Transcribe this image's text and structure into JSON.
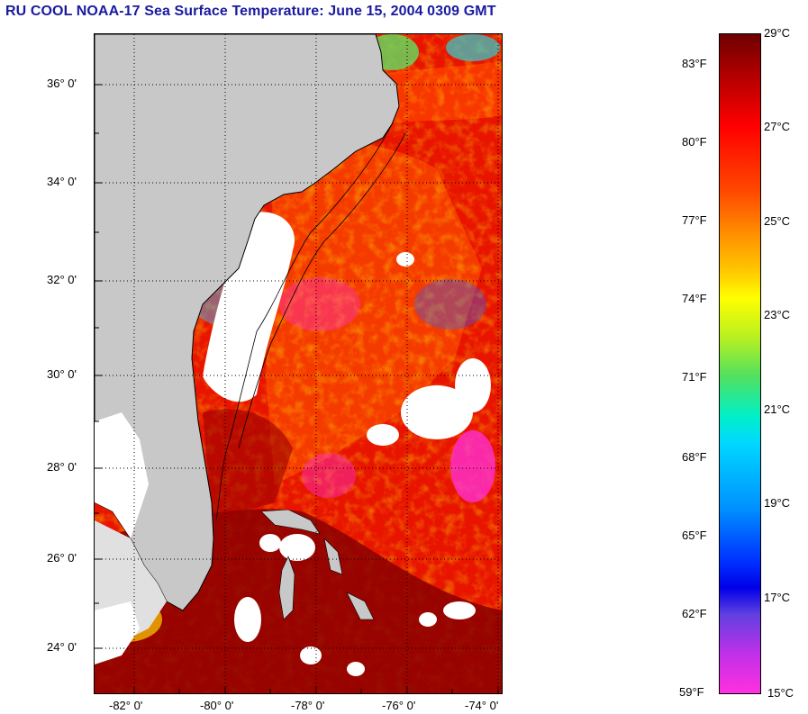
{
  "title": "RU COOL  NOAA-17  Sea Surface Temperature:  June 15, 2004 0309 GMT",
  "map": {
    "lat_labels": [
      "36° 0'",
      "34° 0'",
      "32° 0'",
      "30° 0'",
      "28° 0'",
      "26° 0'",
      "24° 0'"
    ],
    "lon_labels": [
      "-82° 0'",
      "-80° 0'",
      "-78° 0'",
      "-76° 0'",
      "-74° 0'"
    ],
    "land_color": "#c8c8c8",
    "cloud_color": "#ffffff",
    "ocean_colors": {
      "warm": "#e81400",
      "hot": "#8a0000",
      "mid": "#ff5a00",
      "cool": "#ff30e0"
    }
  },
  "colorbar": {
    "fahrenheit": [
      "83°F",
      "80°F",
      "77°F",
      "74°F",
      "71°F",
      "68°F",
      "65°F",
      "62°F",
      "59°F"
    ],
    "celsius": [
      "29°C",
      "27°C",
      "25°C",
      "23°C",
      "21°C",
      "19°C",
      "17°C",
      "15°C"
    ]
  }
}
